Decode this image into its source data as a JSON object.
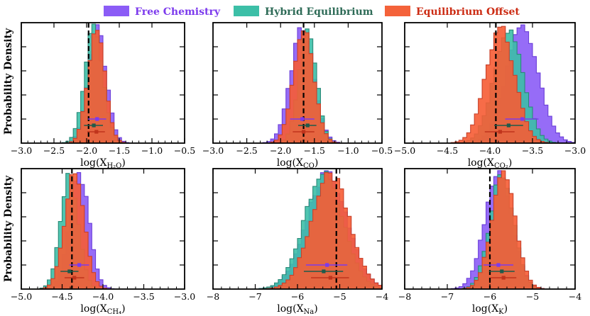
{
  "legend": [
    {
      "label": "Free Chemistry",
      "color": "#8b5cf6",
      "text_color": "#7c3aed"
    },
    {
      "label": "Hybrid Equilibrium",
      "color": "#3cbfa7",
      "text_color": "#2e6b57"
    },
    {
      "label": "Equilibrium Offset",
      "color": "#f4623a",
      "text_color": "#cc2c14"
    }
  ],
  "ylabel": "Probability Density",
  "chart_data": [
    {
      "type": "histogram",
      "xlabel": "log(X",
      "xlabel_sub": "H₂O",
      "xlabel_suffix": ")",
      "xlim": [
        -3.0,
        -0.5
      ],
      "xticks": [
        -3.0,
        -2.5,
        -2.0,
        -1.5,
        -1.0,
        -0.5
      ],
      "xtick_labels": [
        "−3.0",
        "−2.5",
        "−2.0",
        "−1.5",
        "−1.0",
        "−0.5"
      ],
      "truth": -1.97,
      "series": [
        {
          "name": "Free Chemistry",
          "median": -1.84,
          "sigma": 0.14,
          "errbar": [
            -1.98,
            -1.7
          ]
        },
        {
          "name": "Hybrid Equilibrium",
          "median": -1.89,
          "sigma": 0.14,
          "errbar": [
            -2.04,
            -1.75
          ]
        },
        {
          "name": "Equilibrium Offset",
          "median": -1.85,
          "sigma": 0.13,
          "errbar": [
            -1.99,
            -1.72
          ]
        }
      ]
    },
    {
      "type": "histogram",
      "xlabel": "log(X",
      "xlabel_sub": "CO",
      "xlabel_suffix": ")",
      "xlim": [
        -3.0,
        -0.5
      ],
      "xticks": [
        -3.0,
        -2.5,
        -2.0,
        -1.5,
        -1.0,
        -0.5
      ],
      "xtick_labels": [
        "−3.0",
        "−2.5",
        "−2.0",
        "−1.5",
        "−1.0",
        "−0.5"
      ],
      "truth": -1.66,
      "series": [
        {
          "name": "Free Chemistry",
          "median": -1.68,
          "sigma": 0.17,
          "errbar": [
            -1.86,
            -1.5
          ]
        },
        {
          "name": "Hybrid Equilibrium",
          "median": -1.6,
          "sigma": 0.13,
          "errbar": [
            -1.74,
            -1.47
          ]
        },
        {
          "name": "Equilibrium Offset",
          "median": -1.66,
          "sigma": 0.15,
          "errbar": [
            -1.82,
            -1.5
          ]
        }
      ]
    },
    {
      "type": "histogram",
      "xlabel": "log(X",
      "xlabel_sub": "CO₂",
      "xlabel_suffix": ")",
      "xlim": [
        -5.0,
        -3.0
      ],
      "xticks": [
        -5.0,
        -4.5,
        -4.0,
        -3.5,
        -3.0
      ],
      "xtick_labels": [
        "−5.0",
        "−4.5",
        "−4.0",
        "−3.5",
        "−3.0"
      ],
      "truth": -3.93,
      "series": [
        {
          "name": "Free Chemistry",
          "median": -3.62,
          "sigma": 0.19,
          "errbar": [
            -3.82,
            -3.43
          ]
        },
        {
          "name": "Hybrid Equilibrium",
          "median": -3.78,
          "sigma": 0.17,
          "errbar": [
            -3.95,
            -3.61
          ]
        },
        {
          "name": "Equilibrium Offset",
          "median": -3.88,
          "sigma": 0.17,
          "errbar": [
            -4.06,
            -3.71
          ]
        }
      ]
    },
    {
      "type": "histogram",
      "xlabel": "log(X",
      "xlabel_sub": "CH₄",
      "xlabel_suffix": ")",
      "xlim": [
        -5.0,
        -3.0
      ],
      "xticks": [
        -5.0,
        -4.5,
        -4.0,
        -3.5,
        -3.0
      ],
      "xtick_labels": [
        "−5.0",
        "−4.5",
        "−4.0",
        "−3.5",
        "−3.0"
      ],
      "truth": -4.38,
      "series": [
        {
          "name": "Free Chemistry",
          "median": -4.29,
          "sigma": 0.12,
          "errbar": [
            -4.41,
            -4.17
          ]
        },
        {
          "name": "Hybrid Equilibrium",
          "median": -4.41,
          "sigma": 0.11,
          "errbar": [
            -4.52,
            -4.3
          ]
        },
        {
          "name": "Equilibrium Offset",
          "median": -4.35,
          "sigma": 0.12,
          "errbar": [
            -4.47,
            -4.23
          ]
        }
      ]
    },
    {
      "type": "histogram",
      "xlabel": "log(X",
      "xlabel_sub": "Na",
      "xlabel_suffix": ")",
      "xlim": [
        -8,
        -4
      ],
      "xticks": [
        -8,
        -7,
        -6,
        -5,
        -4
      ],
      "xtick_labels": [
        "−8",
        "−7",
        "−6",
        "−5",
        "−4"
      ],
      "truth": -5.08,
      "series": [
        {
          "name": "Free Chemistry",
          "median": -5.3,
          "sigma": 0.48,
          "errbar": [
            -5.8,
            -4.82
          ]
        },
        {
          "name": "Hybrid Equilibrium",
          "median": -5.38,
          "sigma": 0.46,
          "errbar": [
            -5.85,
            -4.92
          ]
        },
        {
          "name": "Equilibrium Offset",
          "median": -5.22,
          "sigma": 0.45,
          "errbar": [
            -5.68,
            -4.78
          ]
        }
      ]
    },
    {
      "type": "histogram",
      "xlabel": "log(X",
      "xlabel_sub": "K",
      "xlabel_suffix": ")",
      "xlim": [
        -8,
        -4
      ],
      "xticks": [
        -8,
        -7,
        -6,
        -5,
        -4
      ],
      "xtick_labels": [
        "−8",
        "−7",
        "−6",
        "−5",
        "−4"
      ],
      "truth": -6.0,
      "series": [
        {
          "name": "Free Chemistry",
          "median": -5.8,
          "sigma": 0.32,
          "errbar": [
            -6.15,
            -5.45
          ]
        },
        {
          "name": "Hybrid Equilibrium",
          "median": -5.72,
          "sigma": 0.28,
          "errbar": [
            -6.02,
            -5.42
          ]
        },
        {
          "name": "Equilibrium Offset",
          "median": -5.68,
          "sigma": 0.28,
          "errbar": [
            -5.98,
            -5.38
          ]
        }
      ]
    }
  ]
}
